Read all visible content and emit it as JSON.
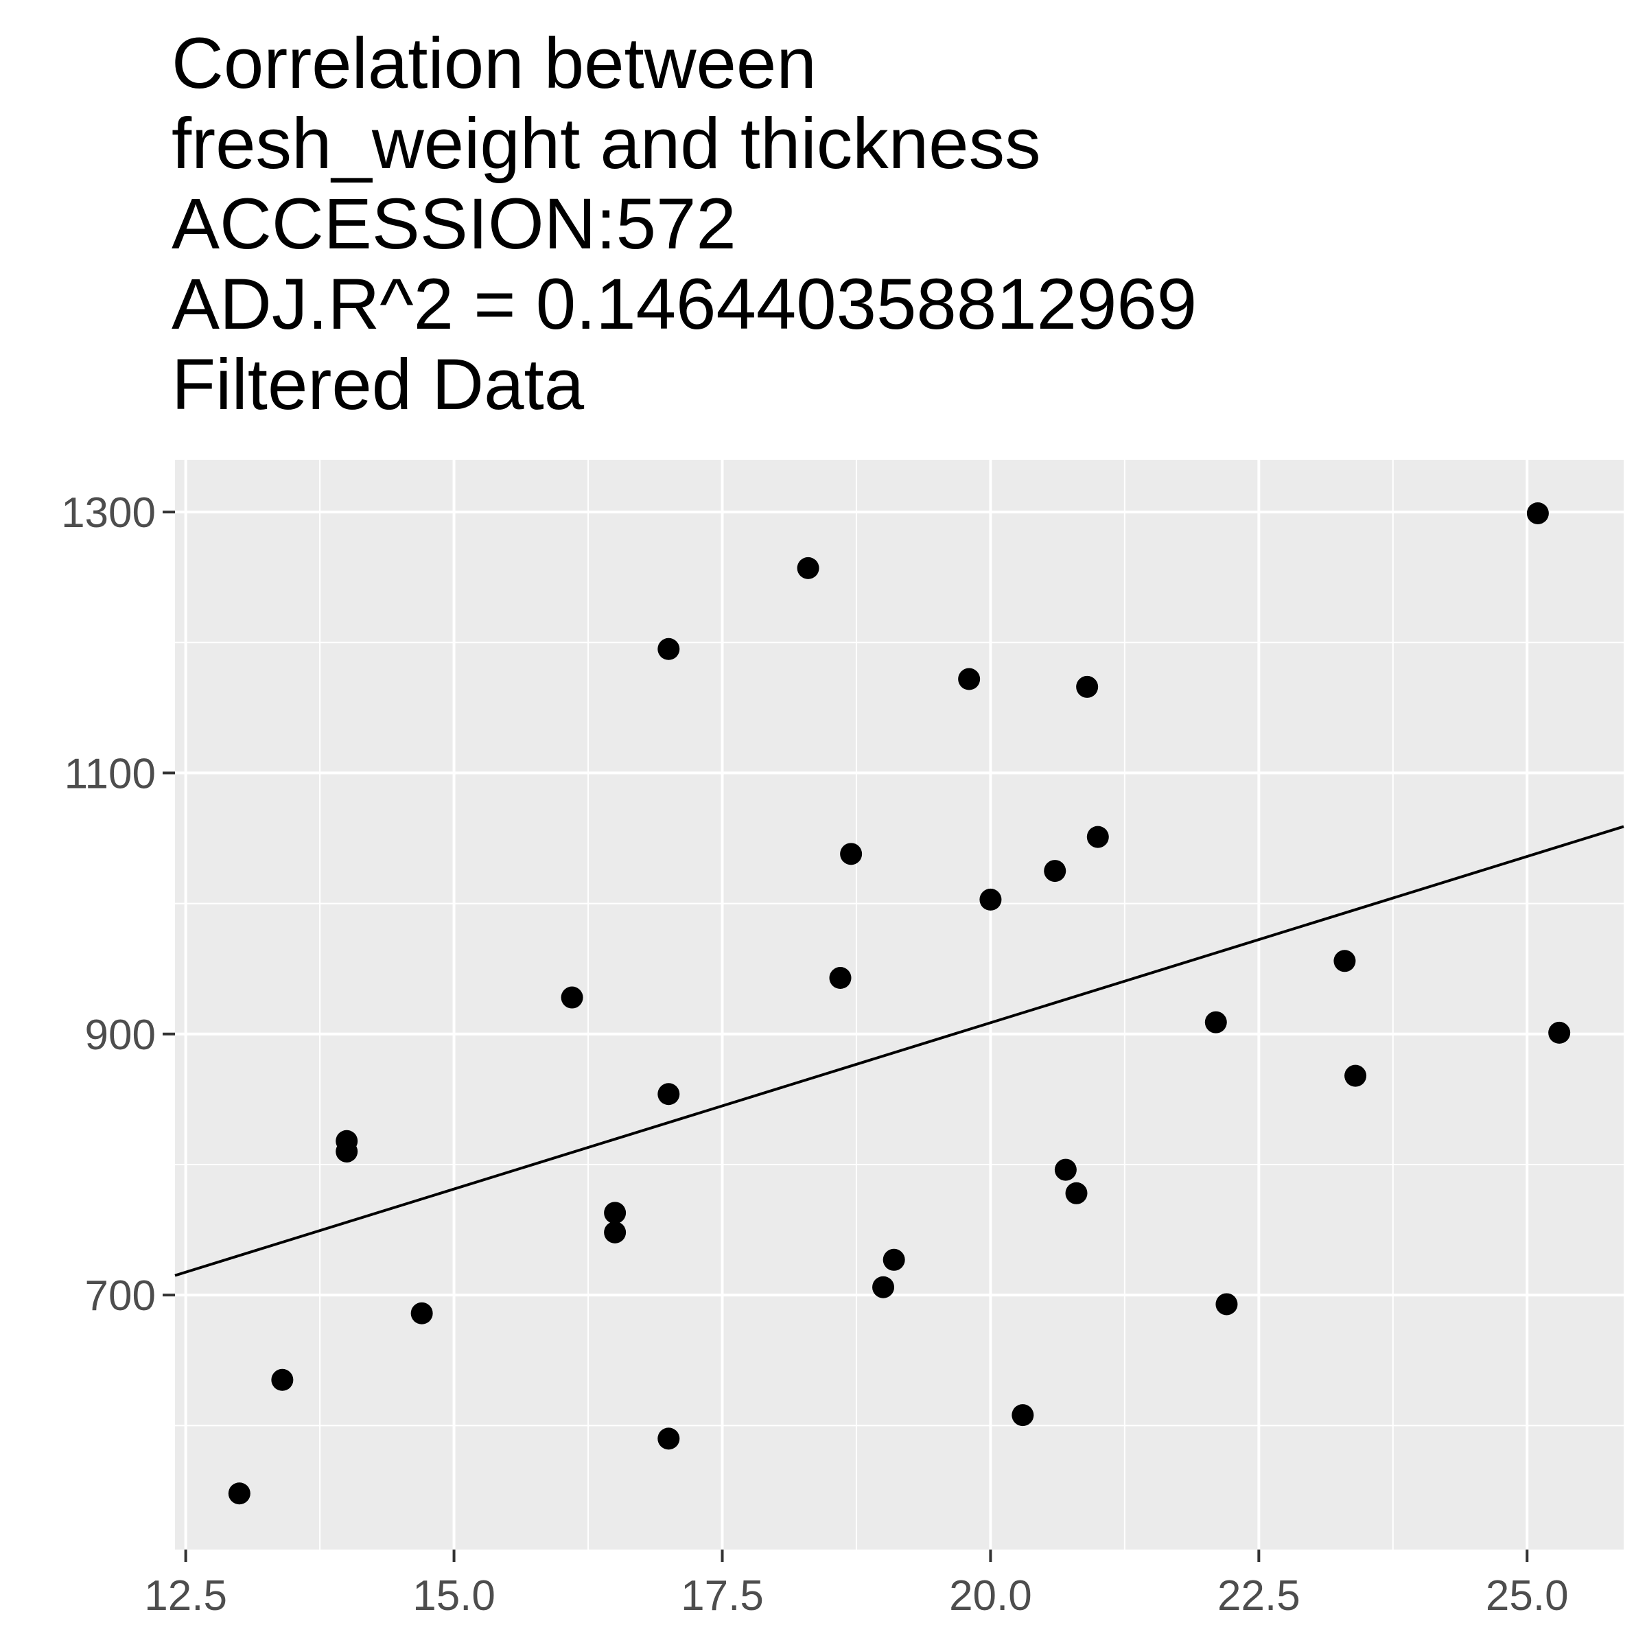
{
  "chart_data": {
    "type": "scatter",
    "title_lines": [
      "Correlation between",
      "fresh_weight and thickness",
      "ACCESSION:572",
      "ADJ.R^2 = 0.146440358812969",
      "Filtered Data"
    ],
    "xlabel": "",
    "ylabel": "",
    "xlim": [
      12.4,
      25.9
    ],
    "ylim": [
      505,
      1340
    ],
    "x_ticks": [
      "12.5",
      "15.0",
      "17.5",
      "20.0",
      "22.5",
      "25.0"
    ],
    "x_tick_values": [
      12.5,
      15.0,
      17.5,
      20.0,
      22.5,
      25.0
    ],
    "y_ticks": [
      "700",
      "900",
      "1100",
      "1300"
    ],
    "y_tick_values": [
      700,
      900,
      1100,
      1300
    ],
    "grid": true,
    "points": [
      {
        "x": 13.0,
        "y": 548
      },
      {
        "x": 13.4,
        "y": 635
      },
      {
        "x": 14.0,
        "y": 818
      },
      {
        "x": 14.0,
        "y": 810
      },
      {
        "x": 14.7,
        "y": 686
      },
      {
        "x": 16.1,
        "y": 928
      },
      {
        "x": 16.5,
        "y": 763
      },
      {
        "x": 16.5,
        "y": 748
      },
      {
        "x": 17.0,
        "y": 1195
      },
      {
        "x": 17.0,
        "y": 854
      },
      {
        "x": 17.0,
        "y": 590
      },
      {
        "x": 18.3,
        "y": 1257
      },
      {
        "x": 18.6,
        "y": 943
      },
      {
        "x": 18.7,
        "y": 1038
      },
      {
        "x": 19.0,
        "y": 706
      },
      {
        "x": 19.1,
        "y": 727
      },
      {
        "x": 19.8,
        "y": 1172
      },
      {
        "x": 20.0,
        "y": 1003
      },
      {
        "x": 20.3,
        "y": 608
      },
      {
        "x": 20.6,
        "y": 1025
      },
      {
        "x": 20.7,
        "y": 796
      },
      {
        "x": 20.8,
        "y": 778
      },
      {
        "x": 20.9,
        "y": 1166
      },
      {
        "x": 21.0,
        "y": 1051
      },
      {
        "x": 22.1,
        "y": 909
      },
      {
        "x": 22.2,
        "y": 693
      },
      {
        "x": 23.3,
        "y": 956
      },
      {
        "x": 23.4,
        "y": 868
      },
      {
        "x": 25.1,
        "y": 1299
      },
      {
        "x": 25.3,
        "y": 901
      }
    ],
    "fit_line": {
      "x": [
        12.4,
        25.9
      ],
      "y": [
        715,
        1059
      ]
    },
    "colors": {
      "panel_bg": "#ebebeb",
      "grid": "#ffffff",
      "point": "#000000",
      "line": "#000000",
      "tick": "#333333"
    }
  }
}
